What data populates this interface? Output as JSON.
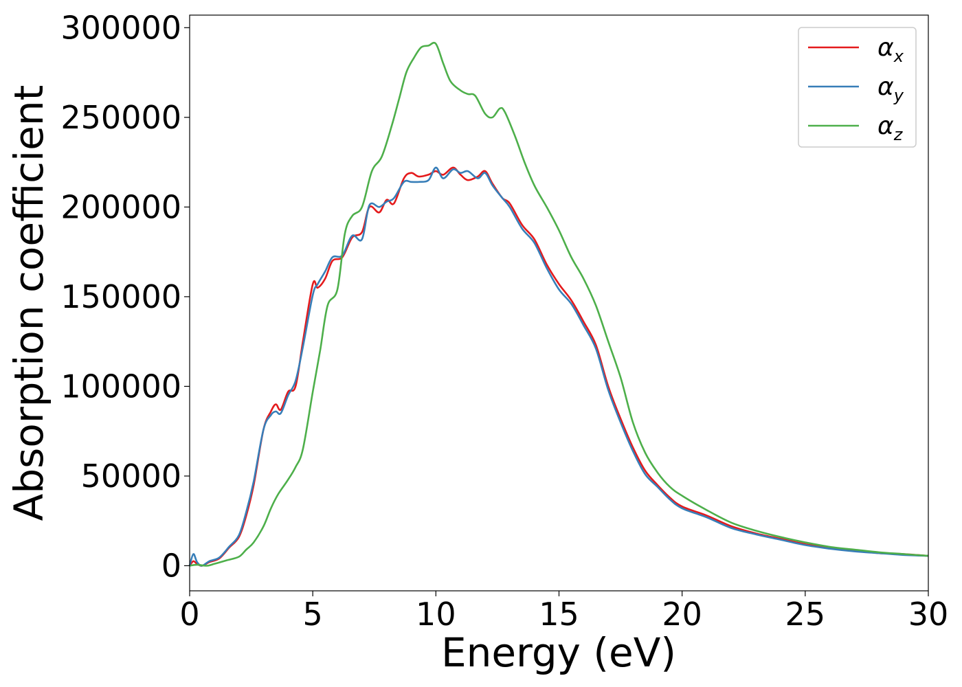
{
  "chart_data": {
    "type": "line",
    "xlabel": "Energy (eV)",
    "ylabel": "Absorption coefficient",
    "xlim": [
      0,
      30
    ],
    "ylim": [
      -14000,
      307000
    ],
    "xticks": [
      0,
      5,
      10,
      15,
      20,
      25,
      30
    ],
    "xtick_labels": [
      "0",
      "5",
      "10",
      "15",
      "20",
      "25",
      "30"
    ],
    "yticks": [
      0,
      50000,
      100000,
      150000,
      200000,
      250000,
      300000
    ],
    "ytick_labels": [
      "0",
      "50000",
      "100000",
      "150000",
      "200000",
      "250000",
      "300000"
    ],
    "grid": false,
    "legend_position": "top-right",
    "series": [
      {
        "name": "α",
        "subscript": "x",
        "color": "#e41a1c",
        "x": [
          0,
          0.15,
          0.3,
          0.5,
          0.8,
          1.2,
          1.6,
          2.0,
          2.3,
          2.6,
          3.0,
          3.3,
          3.5,
          3.7,
          4.0,
          4.3,
          4.6,
          5.0,
          5.2,
          5.5,
          5.8,
          6.2,
          6.6,
          7.0,
          7.3,
          7.7,
          8.0,
          8.3,
          8.7,
          9.0,
          9.3,
          9.7,
          10.0,
          10.3,
          10.7,
          11.0,
          11.3,
          11.7,
          12.0,
          12.3,
          12.7,
          13.0,
          13.5,
          14.0,
          14.5,
          15.0,
          15.5,
          16.0,
          16.5,
          17.0,
          17.5,
          18.0,
          18.5,
          19.0,
          19.5,
          20.0,
          21.0,
          22.0,
          23.0,
          24.0,
          25.0,
          26.0,
          27.0,
          28.0,
          29.0,
          30.0
        ],
        "values": [
          0,
          2500,
          1000,
          0,
          2000,
          4000,
          10000,
          16000,
          28000,
          45000,
          76000,
          86000,
          90000,
          87000,
          97000,
          100000,
          125000,
          157000,
          155000,
          160000,
          170000,
          172000,
          183000,
          186000,
          200000,
          197000,
          204000,
          202000,
          216000,
          219000,
          217000,
          218000,
          220000,
          218000,
          222000,
          218000,
          215000,
          217000,
          220000,
          213000,
          205000,
          202000,
          190000,
          182000,
          168000,
          157000,
          148000,
          136000,
          123000,
          100000,
          82000,
          66000,
          53000,
          45000,
          38000,
          33000,
          28000,
          22000,
          18000,
          15000,
          12000,
          10000,
          8500,
          7000,
          6500,
          5500
        ]
      },
      {
        "name": "α",
        "subscript": "y",
        "color": "#377eb8",
        "x": [
          0,
          0.15,
          0.3,
          0.5,
          0.8,
          1.2,
          1.6,
          2.0,
          2.3,
          2.6,
          3.0,
          3.3,
          3.5,
          3.7,
          4.0,
          4.3,
          4.6,
          5.0,
          5.2,
          5.5,
          5.8,
          6.2,
          6.6,
          7.0,
          7.3,
          7.7,
          8.0,
          8.3,
          8.7,
          9.0,
          9.3,
          9.7,
          10.0,
          10.3,
          10.7,
          11.0,
          11.3,
          11.7,
          12.0,
          12.3,
          12.7,
          13.0,
          13.5,
          14.0,
          14.5,
          15.0,
          15.5,
          16.0,
          16.5,
          17.0,
          17.5,
          18.0,
          18.5,
          19.0,
          19.5,
          20.0,
          21.0,
          22.0,
          23.0,
          24.0,
          25.0,
          26.0,
          27.0,
          28.0,
          29.0,
          30.0
        ],
        "values": [
          0,
          6500,
          2000,
          0,
          2500,
          4500,
          10500,
          17000,
          30000,
          47000,
          76000,
          84000,
          86000,
          85000,
          95000,
          103000,
          122000,
          151000,
          157000,
          164000,
          172000,
          173000,
          184000,
          182000,
          201000,
          200000,
          203000,
          205000,
          214000,
          214000,
          214000,
          215000,
          222000,
          216000,
          221000,
          219000,
          220000,
          216000,
          219000,
          212000,
          205000,
          200000,
          188000,
          180000,
          166000,
          154000,
          146000,
          134000,
          121000,
          98000,
          80000,
          64000,
          51000,
          44000,
          37000,
          32000,
          27000,
          21000,
          17500,
          14500,
          11500,
          9500,
          8000,
          7000,
          6000,
          5500
        ]
      },
      {
        "name": "α",
        "subscript": "z",
        "color": "#4daf4a",
        "x": [
          0,
          0.3,
          0.7,
          1.0,
          1.5,
          2.0,
          2.3,
          2.6,
          3.0,
          3.3,
          3.6,
          4.0,
          4.3,
          4.6,
          5.0,
          5.3,
          5.6,
          6.0,
          6.3,
          6.6,
          7.0,
          7.4,
          7.8,
          8.2,
          8.5,
          8.8,
          9.1,
          9.4,
          9.7,
          10.0,
          10.3,
          10.6,
          11.0,
          11.3,
          11.6,
          12.0,
          12.3,
          12.6,
          12.8,
          13.2,
          13.6,
          14.0,
          14.5,
          15.0,
          15.5,
          16.0,
          16.5,
          17.0,
          17.5,
          18.0,
          18.5,
          19.0,
          19.5,
          20.0,
          21.0,
          22.0,
          23.0,
          24.0,
          25.0,
          26.0,
          27.0,
          28.0,
          29.0,
          30.0
        ],
        "values": [
          0,
          500,
          0,
          1000,
          3000,
          5000,
          9000,
          13000,
          22000,
          32000,
          40000,
          48000,
          55000,
          65000,
          97000,
          120000,
          145000,
          154000,
          185000,
          195000,
          200000,
          220000,
          228000,
          245000,
          260000,
          275000,
          283000,
          289000,
          290000,
          291000,
          280000,
          270000,
          265000,
          263000,
          262000,
          252000,
          250000,
          255000,
          253000,
          240000,
          225000,
          212000,
          200000,
          187000,
          172000,
          160000,
          145000,
          125000,
          105000,
          80000,
          63000,
          52000,
          44000,
          39000,
          31000,
          24000,
          19500,
          16000,
          13000,
          10500,
          9000,
          7500,
          6500,
          5500
        ]
      }
    ]
  }
}
